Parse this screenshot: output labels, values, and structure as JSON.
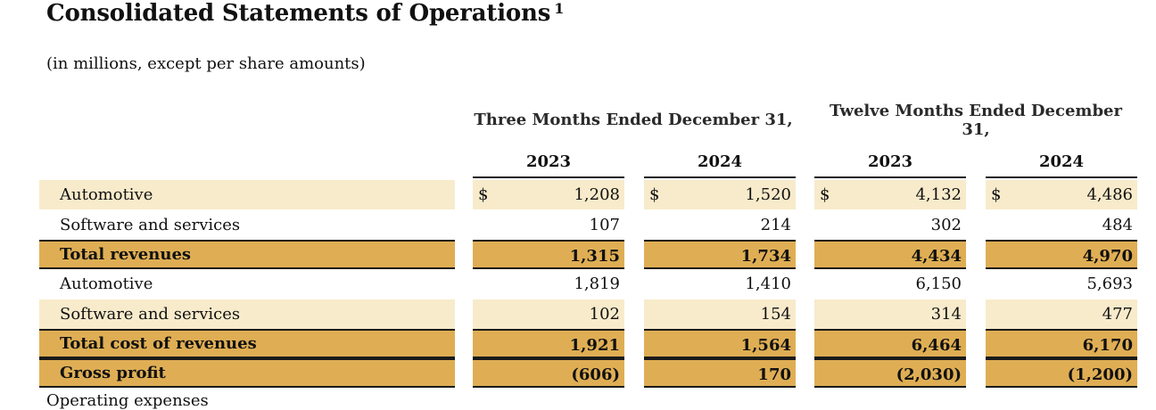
{
  "title": "Consolidated Statements of Operations",
  "title_footnote": "1",
  "subtitle": "(in millions, except per share amounts)",
  "periods": [
    {
      "label": "Three Months Ended December 31,"
    },
    {
      "label": "Twelve Months Ended December 31,"
    }
  ],
  "years": [
    "2023",
    "2024",
    "2023",
    "2024"
  ],
  "currency_symbol": "$",
  "rows": [
    {
      "label": "Automotive",
      "values": [
        "1,208",
        "1,520",
        "4,132",
        "4,486"
      ],
      "style": "light",
      "bold": false,
      "currency": true
    },
    {
      "label": "Software and services",
      "values": [
        "107",
        "214",
        "302",
        "484"
      ],
      "style": "white",
      "bold": false,
      "currency": false
    },
    {
      "label": "Total revenues",
      "values": [
        "1,315",
        "1,734",
        "4,434",
        "4,970"
      ],
      "style": "dark",
      "bold": true,
      "currency": false
    },
    {
      "label": "Automotive",
      "values": [
        "1,819",
        "1,410",
        "6,150",
        "5,693"
      ],
      "style": "white",
      "bold": false,
      "currency": false
    },
    {
      "label": "Software and services",
      "values": [
        "102",
        "154",
        "314",
        "477"
      ],
      "style": "light",
      "bold": false,
      "currency": false
    },
    {
      "label": "Total cost of revenues",
      "values": [
        "1,921",
        "1,564",
        "6,464",
        "6,170"
      ],
      "style": "dark",
      "bold": true,
      "currency": false
    },
    {
      "label": "Gross profit",
      "values": [
        "(606)",
        "170",
        "(2,030)",
        "(1,200)"
      ],
      "style": "dark",
      "bold": true,
      "currency": false
    }
  ],
  "cutoff_text": "Operating expenses",
  "colors": {
    "light_band": "#f8ebcb",
    "dark_band": "#dfae54",
    "rule": "#1a1a1a"
  }
}
